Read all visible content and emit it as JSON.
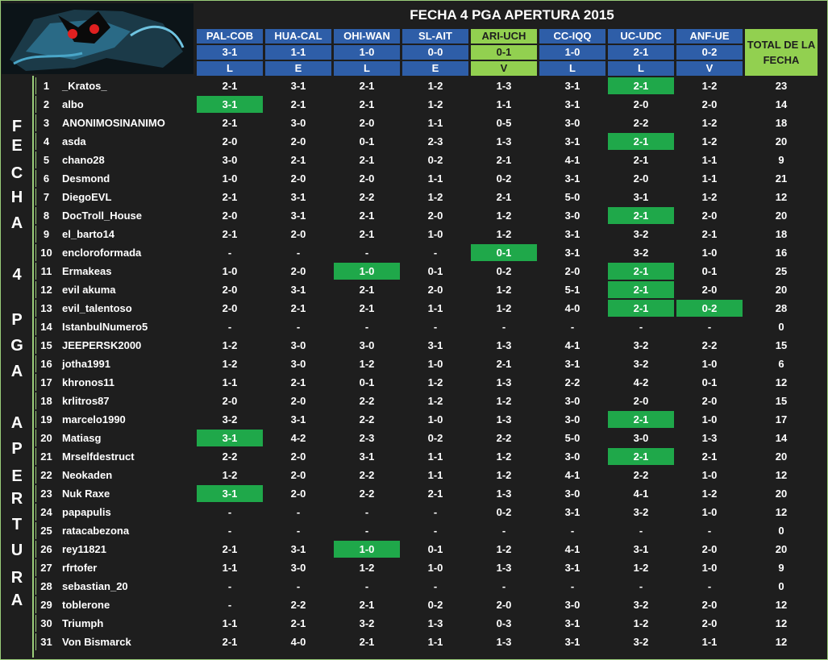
{
  "title": "FECHA 4 PGA APERTURA 2015",
  "total_header": "TOTAL DE LA FECHA",
  "side_letters": [
    "F",
    "E",
    "C",
    "H",
    "A",
    "4",
    "P",
    "G",
    "A",
    "A",
    "P",
    "E",
    "R",
    "T",
    "U",
    "R",
    "A"
  ],
  "matches": [
    {
      "name": "PAL-COB",
      "score": "3-1",
      "res": "L",
      "green": false
    },
    {
      "name": "HUA-CAL",
      "score": "1-1",
      "res": "E",
      "green": false
    },
    {
      "name": "OHI-WAN",
      "score": "1-0",
      "res": "L",
      "green": false
    },
    {
      "name": "SL-AIT",
      "score": "0-0",
      "res": "E",
      "green": false
    },
    {
      "name": "ARI-UCH",
      "score": "0-1",
      "res": "V",
      "green": true
    },
    {
      "name": "CC-IQQ",
      "score": "1-0",
      "res": "L",
      "green": false
    },
    {
      "name": "UC-UDC",
      "score": "2-1",
      "res": "L",
      "green": false
    },
    {
      "name": "ANF-UE",
      "score": "0-2",
      "res": "V",
      "green": false
    }
  ],
  "rows": [
    {
      "n": "1",
      "name": "_Kratos_",
      "p": [
        "2-1",
        "3-1",
        "2-1",
        "1-2",
        "1-3",
        "3-1",
        "2-1",
        "1-2"
      ],
      "hit": [
        6
      ],
      "total": "23"
    },
    {
      "n": "2",
      "name": "albo",
      "p": [
        "3-1",
        "2-1",
        "2-1",
        "1-2",
        "1-1",
        "3-1",
        "2-0",
        "2-0"
      ],
      "hit": [
        0
      ],
      "total": "14"
    },
    {
      "n": "3",
      "name": "ANONIMOSINANIMO",
      "p": [
        "2-1",
        "3-0",
        "2-0",
        "1-1",
        "0-5",
        "3-0",
        "2-2",
        "1-2"
      ],
      "hit": [],
      "total": "18"
    },
    {
      "n": "4",
      "name": "asda",
      "p": [
        "2-0",
        "2-0",
        "0-1",
        "2-3",
        "1-3",
        "3-1",
        "2-1",
        "1-2"
      ],
      "hit": [
        6
      ],
      "total": "20"
    },
    {
      "n": "5",
      "name": "chano28",
      "p": [
        "3-0",
        "2-1",
        "2-1",
        "0-2",
        "2-1",
        "4-1",
        "2-1",
        "1-1"
      ],
      "hit": [],
      "total": "9"
    },
    {
      "n": "6",
      "name": "Desmond",
      "p": [
        "1-0",
        "2-0",
        "2-0",
        "1-1",
        "0-2",
        "3-1",
        "2-0",
        "1-1"
      ],
      "hit": [],
      "total": "21"
    },
    {
      "n": "7",
      "name": "DiegoEVL",
      "p": [
        "2-1",
        "3-1",
        "2-2",
        "1-2",
        "2-1",
        "5-0",
        "3-1",
        "1-2"
      ],
      "hit": [],
      "total": "12"
    },
    {
      "n": "8",
      "name": "DocTroll_House",
      "p": [
        "2-0",
        "3-1",
        "2-1",
        "2-0",
        "1-2",
        "3-0",
        "2-1",
        "2-0"
      ],
      "hit": [
        6
      ],
      "total": "20"
    },
    {
      "n": "9",
      "name": "el_barto14",
      "p": [
        "2-1",
        "2-0",
        "2-1",
        "1-0",
        "1-2",
        "3-1",
        "3-2",
        "2-1"
      ],
      "hit": [],
      "total": "18"
    },
    {
      "n": "10",
      "name": "encloroformada",
      "p": [
        "-",
        "-",
        "-",
        "-",
        "0-1",
        "3-1",
        "3-2",
        "1-0"
      ],
      "hit": [
        4
      ],
      "total": "16"
    },
    {
      "n": "11",
      "name": "Ermakeas",
      "p": [
        "1-0",
        "2-0",
        "1-0",
        "0-1",
        "0-2",
        "2-0",
        "2-1",
        "0-1"
      ],
      "hit": [
        2,
        6
      ],
      "total": "25"
    },
    {
      "n": "12",
      "name": "evil akuma",
      "p": [
        "2-0",
        "3-1",
        "2-1",
        "2-0",
        "1-2",
        "5-1",
        "2-1",
        "2-0"
      ],
      "hit": [
        6
      ],
      "total": "20"
    },
    {
      "n": "13",
      "name": "evil_talentoso",
      "p": [
        "2-0",
        "2-1",
        "2-1",
        "1-1",
        "1-2",
        "4-0",
        "2-1",
        "0-2"
      ],
      "hit": [
        6,
        7
      ],
      "total": "28"
    },
    {
      "n": "14",
      "name": "IstanbulNumero5",
      "p": [
        "-",
        "-",
        "-",
        "-",
        "-",
        "-",
        "-",
        "-"
      ],
      "hit": [],
      "total": "0"
    },
    {
      "n": "15",
      "name": "JEEPERSK2000",
      "p": [
        "1-2",
        "3-0",
        "3-0",
        "3-1",
        "1-3",
        "4-1",
        "3-2",
        "2-2"
      ],
      "hit": [],
      "total": "15"
    },
    {
      "n": "16",
      "name": "jotha1991",
      "p": [
        "1-2",
        "3-0",
        "1-2",
        "1-0",
        "2-1",
        "3-1",
        "3-2",
        "1-0"
      ],
      "hit": [],
      "total": "6"
    },
    {
      "n": "17",
      "name": "khronos11",
      "p": [
        "1-1",
        "2-1",
        "0-1",
        "1-2",
        "1-3",
        "2-2",
        "4-2",
        "0-1"
      ],
      "hit": [],
      "total": "12"
    },
    {
      "n": "18",
      "name": "krlitros87",
      "p": [
        "2-0",
        "2-0",
        "2-2",
        "1-2",
        "1-2",
        "3-0",
        "2-0",
        "2-0"
      ],
      "hit": [],
      "total": "15"
    },
    {
      "n": "19",
      "name": "marcelo1990",
      "p": [
        "3-2",
        "3-1",
        "2-2",
        "1-0",
        "1-3",
        "3-0",
        "2-1",
        "1-0"
      ],
      "hit": [
        6
      ],
      "total": "17"
    },
    {
      "n": "20",
      "name": "Matiasg",
      "p": [
        "3-1",
        "4-2",
        "2-3",
        "0-2",
        "2-2",
        "5-0",
        "3-0",
        "1-3"
      ],
      "hit": [
        0
      ],
      "total": "14"
    },
    {
      "n": "21",
      "name": "Mrselfdestruct",
      "p": [
        "2-2",
        "2-0",
        "3-1",
        "1-1",
        "1-2",
        "3-0",
        "2-1",
        "2-1"
      ],
      "hit": [
        6
      ],
      "total": "20"
    },
    {
      "n": "22",
      "name": "Neokaden",
      "p": [
        "1-2",
        "2-0",
        "2-2",
        "1-1",
        "1-2",
        "4-1",
        "2-2",
        "1-0"
      ],
      "hit": [],
      "total": "12"
    },
    {
      "n": "23",
      "name": "Nuk Raxe",
      "p": [
        "3-1",
        "2-0",
        "2-2",
        "2-1",
        "1-3",
        "3-0",
        "4-1",
        "1-2"
      ],
      "hit": [
        0
      ],
      "total": "20"
    },
    {
      "n": "24",
      "name": "papapulis",
      "p": [
        "-",
        "-",
        "-",
        "-",
        "0-2",
        "3-1",
        "3-2",
        "1-0"
      ],
      "hit": [],
      "total": "12"
    },
    {
      "n": "25",
      "name": "ratacabezona",
      "p": [
        "-",
        "-",
        "-",
        "-",
        "-",
        "-",
        "-",
        "-"
      ],
      "hit": [],
      "total": "0"
    },
    {
      "n": "26",
      "name": "rey11821",
      "p": [
        "2-1",
        "3-1",
        "1-0",
        "0-1",
        "1-2",
        "4-1",
        "3-1",
        "2-0"
      ],
      "hit": [
        2
      ],
      "total": "20"
    },
    {
      "n": "27",
      "name": "rfrtofer",
      "p": [
        "1-1",
        "3-0",
        "1-2",
        "1-0",
        "1-3",
        "3-1",
        "1-2",
        "1-0"
      ],
      "hit": [],
      "total": "9"
    },
    {
      "n": "28",
      "name": "sebastian_20",
      "p": [
        "-",
        "-",
        "-",
        "-",
        "-",
        "-",
        "-",
        "-"
      ],
      "hit": [],
      "total": "0"
    },
    {
      "n": "29",
      "name": "toblerone",
      "p": [
        "-",
        "2-2",
        "2-1",
        "0-2",
        "2-0",
        "3-0",
        "3-2",
        "2-0"
      ],
      "hit": [],
      "total": "12"
    },
    {
      "n": "30",
      "name": "Triumph",
      "p": [
        "1-1",
        "2-1",
        "3-2",
        "1-3",
        "0-3",
        "3-1",
        "1-2",
        "2-0"
      ],
      "hit": [],
      "total": "12"
    },
    {
      "n": "31",
      "name": "Von Bismarck",
      "p": [
        "2-1",
        "4-0",
        "2-1",
        "1-1",
        "1-3",
        "3-1",
        "3-2",
        "1-1"
      ],
      "hit": [],
      "total": "12"
    }
  ]
}
